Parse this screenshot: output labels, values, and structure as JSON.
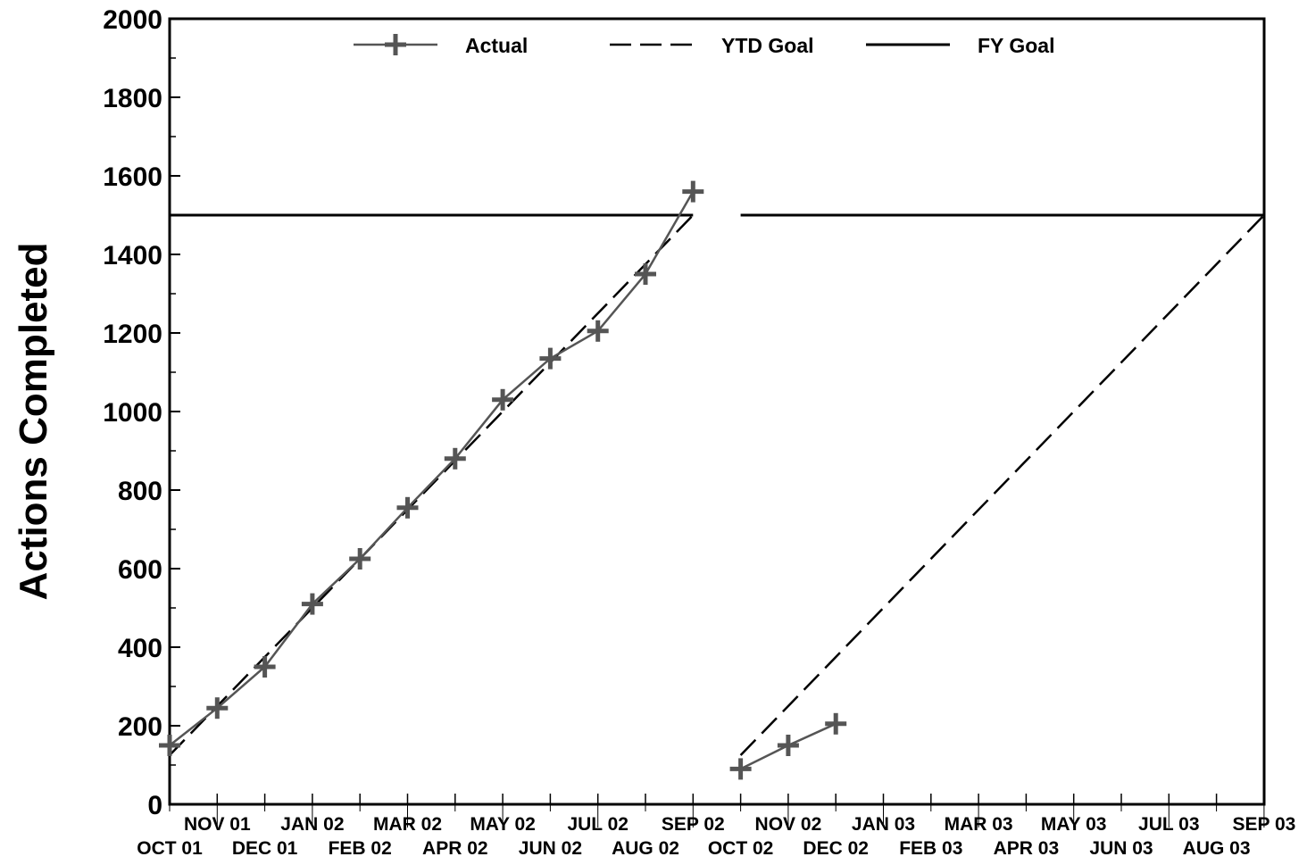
{
  "chart_data": {
    "type": "line",
    "title": "",
    "xlabel": "",
    "ylabel": "Actions Completed",
    "ylim": [
      0,
      2000
    ],
    "yticks": [
      0,
      200,
      400,
      600,
      800,
      1000,
      1200,
      1400,
      1600,
      1800,
      2000
    ],
    "categories": [
      "OCT 01",
      "NOV 01",
      "DEC 01",
      "JAN 02",
      "FEB 02",
      "MAR 02",
      "APR 02",
      "MAY 02",
      "JUN 02",
      "JUL 02",
      "AUG 02",
      "SEP 02",
      "OCT 02",
      "NOV 02",
      "DEC 02",
      "JAN 03",
      "FEB 03",
      "MAR 03",
      "APR 03",
      "MAY 03",
      "JUN 03",
      "JUL 03",
      "AUG 03",
      "SEP 03"
    ],
    "grid": false,
    "legend": {
      "placement": "top-center",
      "entries": [
        "Actual",
        "YTD Goal",
        "FY Goal"
      ]
    },
    "series": [
      {
        "name": "Actual",
        "style": "solid-with-plus-markers",
        "color": "#555555",
        "segments": [
          [
            150,
            245,
            350,
            510,
            625,
            755,
            880,
            1030,
            1135,
            1205,
            1350,
            1560
          ],
          [
            90,
            150,
            205
          ]
        ],
        "segment_start_index": [
          0,
          12
        ]
      },
      {
        "name": "YTD Goal",
        "style": "dashed",
        "color": "#000000",
        "segments": [
          {
            "from": [
              0,
              125
            ],
            "to": [
              11,
              1500
            ]
          },
          {
            "from": [
              12,
              125
            ],
            "to": [
              23,
              1500
            ]
          }
        ]
      },
      {
        "name": "FY Goal",
        "style": "solid",
        "color": "#000000",
        "segments": [
          {
            "from": [
              0,
              1500
            ],
            "to": [
              11,
              1500
            ]
          },
          {
            "from": [
              12,
              1500
            ],
            "to": [
              23,
              1500
            ]
          }
        ]
      }
    ]
  }
}
